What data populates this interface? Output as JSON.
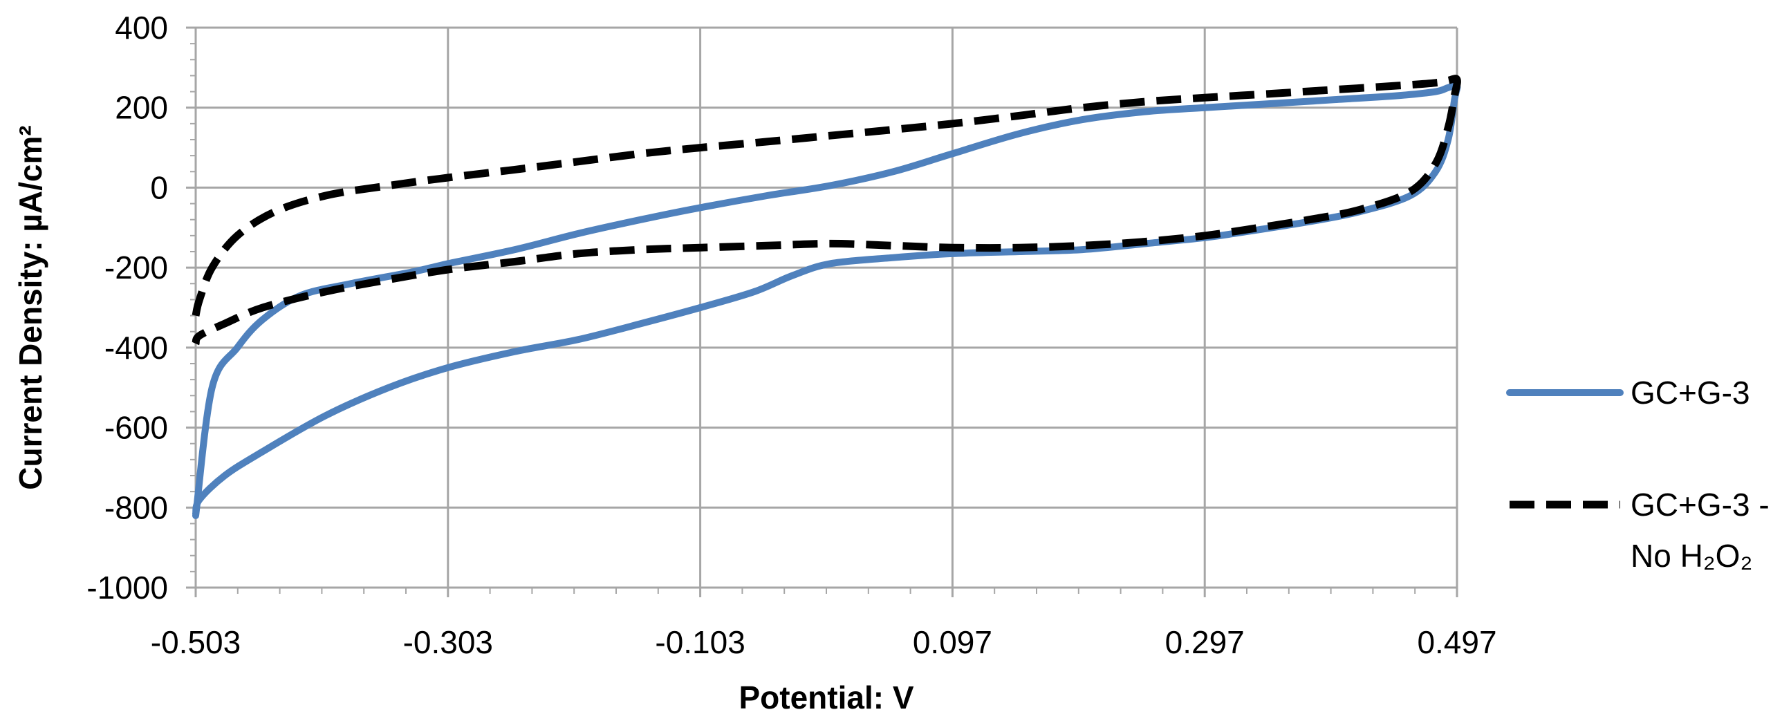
{
  "chart_data": {
    "type": "line",
    "xlabel": "Potential: V",
    "ylabel": "Current Density: µA/cm²",
    "xlim": [
      -0.503,
      0.497
    ],
    "ylim": [
      -1000,
      400
    ],
    "xticks": [
      -0.503,
      -0.303,
      -0.103,
      0.097,
      0.297,
      0.497
    ],
    "xtick_labels": [
      "-0.503",
      "-0.303",
      "-0.103",
      "0.097",
      "0.297",
      "0.497"
    ],
    "yticks": [
      -1000,
      -800,
      -600,
      -400,
      -200,
      0,
      200,
      400
    ],
    "ytick_labels": [
      "-1000",
      "-800",
      "-600",
      "-400",
      "-200",
      "0",
      "200",
      "400"
    ],
    "grid": true,
    "legend_position": "right",
    "series": [
      {
        "name": "GC+G-3",
        "color": "#4f81bd",
        "style": "solid",
        "x": [
          -0.503,
          -0.49,
          -0.47,
          -0.45,
          -0.42,
          -0.38,
          -0.33,
          -0.303,
          -0.25,
          -0.2,
          -0.15,
          -0.103,
          -0.05,
          0.0,
          0.05,
          0.097,
          0.15,
          0.2,
          0.25,
          0.297,
          0.35,
          0.4,
          0.45,
          0.48,
          0.49,
          0.497,
          0.495,
          0.49,
          0.48,
          0.46,
          0.42,
          0.38,
          0.33,
          0.297,
          0.25,
          0.2,
          0.15,
          0.097,
          0.05,
          0.0,
          -0.03,
          -0.06,
          -0.103,
          -0.15,
          -0.2,
          -0.25,
          -0.303,
          -0.35,
          -0.4,
          -0.45,
          -0.48,
          -0.5,
          -0.503
        ],
        "y": [
          -820,
          -500,
          -400,
          -330,
          -270,
          -240,
          -210,
          -190,
          -155,
          -115,
          -80,
          -50,
          -20,
          5,
          40,
          85,
          135,
          170,
          190,
          200,
          210,
          220,
          230,
          240,
          250,
          255,
          220,
          120,
          40,
          -20,
          -60,
          -85,
          -110,
          -125,
          -140,
          -155,
          -160,
          -165,
          -175,
          -190,
          -220,
          -260,
          -300,
          -340,
          -380,
          -410,
          -450,
          -500,
          -570,
          -660,
          -720,
          -780,
          -815
        ]
      },
      {
        "name": "GC+G-3 - No H₂O₂",
        "color": "#000000",
        "style": "dashed",
        "x": [
          -0.503,
          -0.5,
          -0.49,
          -0.47,
          -0.44,
          -0.4,
          -0.35,
          -0.303,
          -0.25,
          -0.2,
          -0.15,
          -0.103,
          -0.05,
          0.0,
          0.05,
          0.097,
          0.15,
          0.2,
          0.25,
          0.297,
          0.35,
          0.4,
          0.45,
          0.48,
          0.49,
          0.497,
          0.495,
          0.49,
          0.48,
          0.46,
          0.42,
          0.38,
          0.33,
          0.297,
          0.25,
          0.2,
          0.15,
          0.097,
          0.05,
          0.0,
          -0.05,
          -0.103,
          -0.15,
          -0.2,
          -0.25,
          -0.303,
          -0.35,
          -0.4,
          -0.45,
          -0.48,
          -0.5,
          -0.503
        ],
        "y": [
          -320,
          -280,
          -200,
          -120,
          -60,
          -20,
          5,
          25,
          45,
          65,
          85,
          100,
          115,
          130,
          145,
          160,
          180,
          200,
          215,
          225,
          235,
          245,
          255,
          262,
          268,
          270,
          230,
          150,
          60,
          -10,
          -55,
          -80,
          -105,
          -120,
          -135,
          -145,
          -150,
          -150,
          -145,
          -140,
          -145,
          -150,
          -155,
          -165,
          -185,
          -205,
          -230,
          -260,
          -300,
          -340,
          -370,
          -390
        ]
      }
    ]
  },
  "legend": {
    "items": [
      {
        "lines": [
          "GC+G-3"
        ]
      },
      {
        "lines": [
          "GC+G-3 -",
          "No H₂O₂"
        ]
      }
    ]
  }
}
